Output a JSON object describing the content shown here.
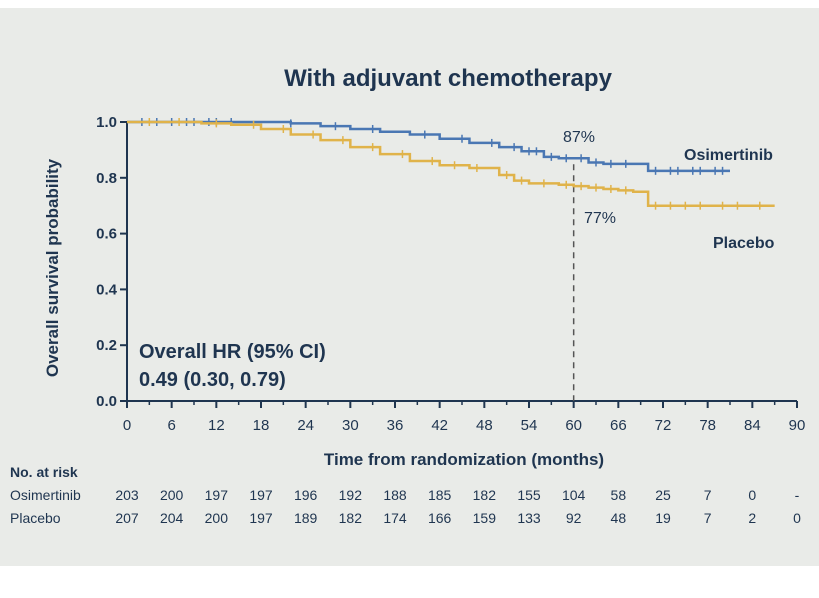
{
  "chart_data": {
    "type": "line",
    "title": "With adjuvant chemotherapy",
    "xlabel": "Time from randomization (months)",
    "ylabel": "Overall survival probability",
    "xlim": [
      0,
      90
    ],
    "ylim": [
      0,
      1
    ],
    "x_ticks": [
      "0",
      "6",
      "12",
      "18",
      "24",
      "30",
      "36",
      "42",
      "48",
      "54",
      "60",
      "66",
      "72",
      "78",
      "84",
      "90"
    ],
    "y_ticks": [
      "0.0",
      "0.2",
      "0.4",
      "0.6",
      "0.8",
      "1.0"
    ],
    "series": [
      {
        "name": "Osimertinib",
        "color": "#4a77b3",
        "x": [
          0,
          5,
          10,
          15,
          20,
          22,
          26,
          30,
          34,
          38,
          42,
          46,
          50,
          53,
          56,
          58,
          60,
          62,
          64,
          66,
          68,
          70,
          72,
          75,
          78,
          81
        ],
        "y": [
          1.0,
          1.0,
          1.0,
          1.0,
          1.0,
          0.995,
          0.985,
          0.975,
          0.965,
          0.955,
          0.94,
          0.925,
          0.91,
          0.895,
          0.875,
          0.87,
          0.87,
          0.855,
          0.85,
          0.85,
          0.85,
          0.825,
          0.825,
          0.825,
          0.825,
          0.825
        ],
        "censor_x": [
          2,
          4,
          6,
          8,
          9,
          11,
          12,
          14,
          22,
          28,
          33,
          40,
          45,
          49,
          52,
          54,
          55,
          57,
          59,
          61,
          63,
          65,
          67,
          71,
          73,
          74,
          76,
          77,
          79,
          80
        ]
      },
      {
        "name": "Placebo",
        "color": "#e0b34a",
        "x": [
          0,
          5,
          10,
          14,
          18,
          22,
          26,
          30,
          34,
          38,
          42,
          46,
          50,
          52,
          54,
          58,
          60,
          62,
          64,
          66,
          68,
          70,
          72,
          75,
          78,
          81,
          84,
          87
        ],
        "y": [
          1.0,
          1.0,
          0.995,
          0.99,
          0.975,
          0.955,
          0.935,
          0.91,
          0.885,
          0.86,
          0.845,
          0.835,
          0.81,
          0.79,
          0.78,
          0.775,
          0.77,
          0.765,
          0.76,
          0.755,
          0.75,
          0.7,
          0.7,
          0.7,
          0.7,
          0.7,
          0.7,
          0.7
        ],
        "censor_x": [
          3,
          7,
          12,
          17,
          21,
          25,
          29,
          33,
          37,
          41,
          44,
          47,
          51,
          53,
          56,
          59,
          61,
          63,
          65,
          67,
          71,
          73,
          75,
          77,
          80,
          82,
          85
        ]
      }
    ],
    "annotations": {
      "reference_month": 60,
      "osimertinib_label": "87%",
      "placebo_label": "77%",
      "hr_line1": "Overall HR (95% CI)",
      "hr_line2": "0.49 (0.30, 0.79)"
    },
    "risk_table": {
      "title": "No. at risk",
      "rows": [
        {
          "name": "Osimertinib",
          "values": [
            "203",
            "200",
            "197",
            "197",
            "196",
            "192",
            "188",
            "185",
            "182",
            "155",
            "104",
            "58",
            "25",
            "7",
            "0",
            "-"
          ]
        },
        {
          "name": "Placebo",
          "values": [
            "207",
            "204",
            "200",
            "197",
            "189",
            "182",
            "174",
            "166",
            "159",
            "133",
            "92",
            "48",
            "19",
            "7",
            "2",
            "0"
          ]
        }
      ]
    }
  }
}
